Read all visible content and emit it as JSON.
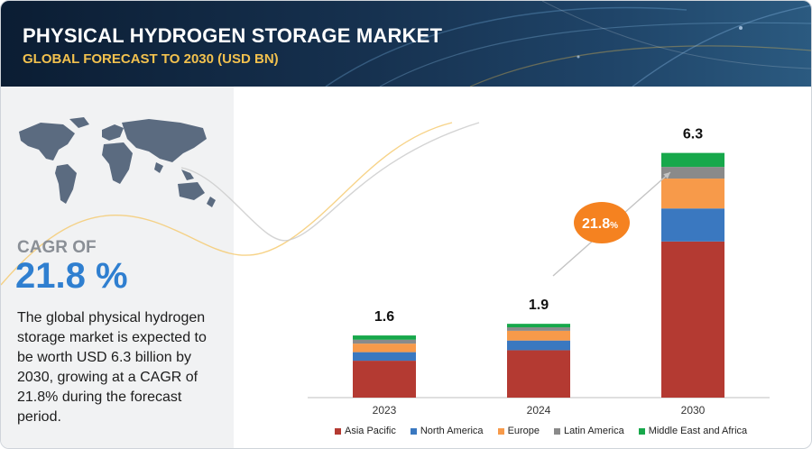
{
  "header": {
    "title": "PHYSICAL HYDROGEN STORAGE MARKET",
    "subtitle": "GLOBAL FORECAST TO 2030 (USD BN)"
  },
  "left": {
    "cagr_label": "CAGR OF",
    "cagr_value": "21.8 %",
    "description": "The global physical hydrogen storage market is expected to be worth USD 6.3 billion by 2030, growing at a CAGR of 21.8% during the forecast period."
  },
  "cagr_bubble": {
    "value": "21.8",
    "unit": "%",
    "color": "#f58220"
  },
  "chart_data": {
    "type": "bar",
    "stacked": true,
    "categories": [
      "2023",
      "2024",
      "2030"
    ],
    "totals": [
      1.6,
      1.9,
      6.3
    ],
    "total_labels": [
      "1.6",
      "1.9",
      "6.3"
    ],
    "ylim": [
      0,
      6.5
    ],
    "grid": false,
    "legend_position": "bottom",
    "series": [
      {
        "name": "Asia Pacific",
        "color": "#b43a32",
        "values": [
          0.95,
          1.22,
          4.02
        ]
      },
      {
        "name": "North America",
        "color": "#3a78c0",
        "values": [
          0.22,
          0.25,
          0.85
        ]
      },
      {
        "name": "Europe",
        "color": "#f79a4a",
        "values": [
          0.22,
          0.25,
          0.77
        ]
      },
      {
        "name": "Latin America",
        "color": "#8a8a8a",
        "values": [
          0.1,
          0.09,
          0.3
        ]
      },
      {
        "name": "Middle East and Africa",
        "color": "#17a84b",
        "values": [
          0.11,
          0.09,
          0.36
        ]
      }
    ]
  }
}
